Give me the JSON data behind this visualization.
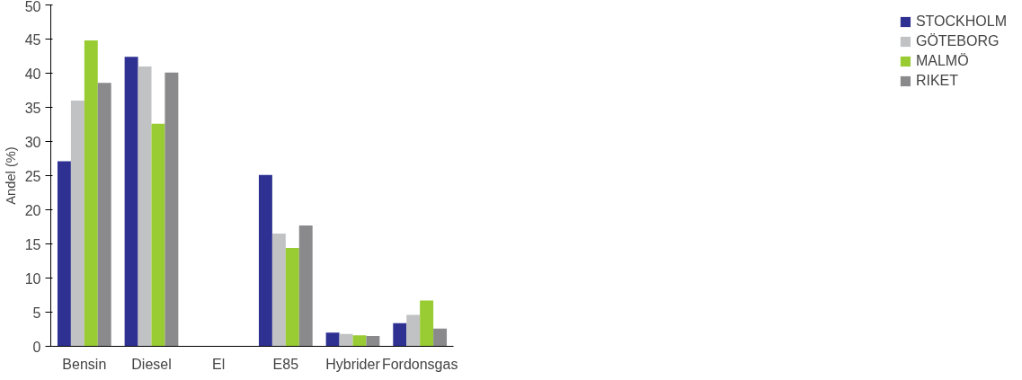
{
  "chart_data": {
    "type": "bar",
    "ylabel": "Andel (%)",
    "categories": [
      "Bensin",
      "Diesel",
      "El",
      "E85",
      "Hybrider",
      "Fordonsgas"
    ],
    "series": [
      {
        "name": "STOCKHOLM",
        "color": "#2e3192",
        "values": [
          27.1,
          42.4,
          0,
          25.1,
          2.0,
          3.4
        ]
      },
      {
        "name": "GÖTEBORG",
        "color": "#c0c2c4",
        "values": [
          36.0,
          41.0,
          0,
          16.5,
          1.8,
          4.6
        ]
      },
      {
        "name": "MALMÖ",
        "color": "#99cc33",
        "values": [
          44.8,
          32.6,
          0,
          14.4,
          1.6,
          6.7
        ]
      },
      {
        "name": "RIKET",
        "color": "#8a8a8c",
        "values": [
          38.6,
          40.1,
          0,
          17.7,
          1.5,
          2.6
        ]
      }
    ],
    "ylim": [
      0,
      50
    ],
    "yticks": [
      0,
      5,
      10,
      15,
      20,
      25,
      30,
      35,
      40,
      45,
      50
    ],
    "grid": false,
    "legend": "right"
  }
}
